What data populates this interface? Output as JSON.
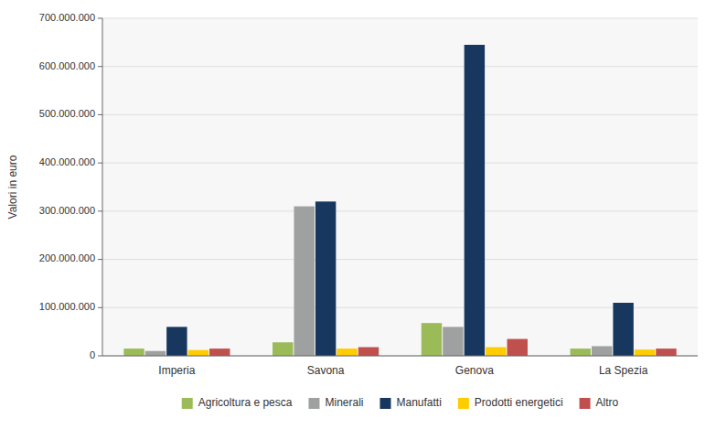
{
  "chart_data": {
    "type": "bar",
    "categories": [
      "Imperia",
      "Savona",
      "Genova",
      "La Spezia"
    ],
    "series": [
      {
        "name": "Agricoltura e pesca",
        "color": "#9BBB59",
        "values": [
          15000000,
          28000000,
          68000000,
          15000000
        ]
      },
      {
        "name": "Minerali",
        "color": "#9FA0A0",
        "values": [
          10000000,
          310000000,
          60000000,
          20000000
        ]
      },
      {
        "name": "Manufatti",
        "color": "#17375E",
        "values": [
          60000000,
          320000000,
          645000000,
          110000000
        ]
      },
      {
        "name": "Prodotti energetici",
        "color": "#FFCC00",
        "values": [
          12000000,
          15000000,
          18000000,
          13000000
        ]
      },
      {
        "name": "Altro",
        "color": "#C0504D",
        "values": [
          15000000,
          18000000,
          35000000,
          15000000
        ]
      }
    ],
    "ylabel": "Valori in euro",
    "ylim": [
      0,
      700000000
    ],
    "yticks": [
      0,
      {
        "value": 100000000,
        "label": "100.000.000"
      },
      {
        "value": 200000000,
        "label": "200.000.000"
      },
      {
        "value": 300000000,
        "label": "300.000.000"
      },
      {
        "value": 400000000,
        "label": "400.000.000"
      },
      {
        "value": 500000000,
        "label": "500.000.000"
      },
      {
        "value": 600000000,
        "label": "600.000.000"
      },
      {
        "value": 700000000,
        "label": "700.000.000"
      }
    ],
    "grid": true,
    "legend": "bottom"
  }
}
